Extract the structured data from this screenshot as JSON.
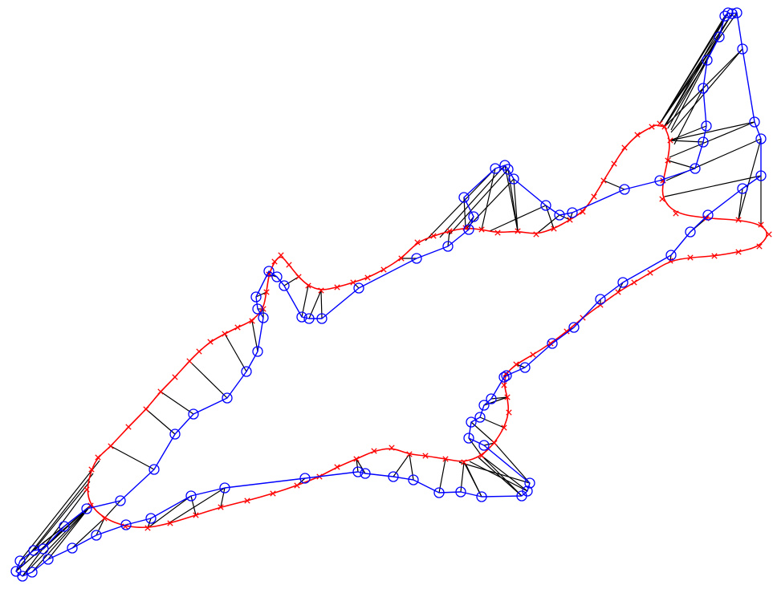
{
  "colors": {
    "background": "#ffffff",
    "target_contour": "#ff0000",
    "source_contour": "#0000ff",
    "correspondence_lines": "#000000"
  },
  "legend": [],
  "text": []
}
